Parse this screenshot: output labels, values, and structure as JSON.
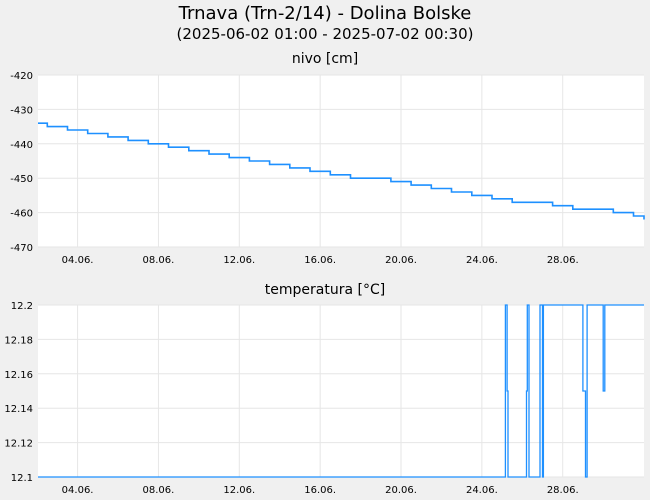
{
  "title": "Trnava (Trn-2/14) - Dolina Bolske",
  "subtitle": "(2025-06-02 01:00 - 2025-07-02 00:30)",
  "chart_data": [
    {
      "type": "line",
      "title": "nivo [cm]",
      "xlabel": "",
      "ylabel": "",
      "ylim": [
        -470,
        -420
      ],
      "yticks": [
        -470,
        -460,
        -450,
        -440,
        -430,
        -420
      ],
      "x_range": [
        "2025-06-02 01:00",
        "2025-07-02 00:30"
      ],
      "xticks": [
        "04.06.",
        "08.06.",
        "12.06.",
        "16.06.",
        "20.06.",
        "24.06.",
        "28.06."
      ],
      "grid": true,
      "color": "#1e90ff",
      "series": [
        {
          "x": [
            "2025-06-02 01:00",
            "2025-06-02 12:00",
            "2025-06-03 12:00",
            "2025-06-04 12:00",
            "2025-06-05 12:00",
            "2025-06-06 12:00",
            "2025-06-07 12:00",
            "2025-06-08 12:00",
            "2025-06-09 12:00",
            "2025-06-10 12:00",
            "2025-06-11 12:00",
            "2025-06-12 12:00",
            "2025-06-13 12:00",
            "2025-06-14 12:00",
            "2025-06-15 12:00",
            "2025-06-16 12:00",
            "2025-06-17 12:00",
            "2025-06-18 12:00",
            "2025-06-19 12:00",
            "2025-06-20 12:00",
            "2025-06-21 12:00",
            "2025-06-22 12:00",
            "2025-06-23 12:00",
            "2025-06-24 12:00",
            "2025-06-25 12:00",
            "2025-06-26 12:00",
            "2025-06-27 12:00",
            "2025-06-28 12:00",
            "2025-06-29 12:00",
            "2025-06-30 12:00",
            "2025-07-01 12:00",
            "2025-07-02 00:30"
          ],
          "values": [
            -434,
            -435,
            -436,
            -437,
            -438,
            -439,
            -440,
            -441,
            -442,
            -443,
            -444,
            -445,
            -446,
            -447,
            -448,
            -449,
            -450,
            -450,
            -451,
            -452,
            -453,
            -454,
            -455,
            -456,
            -457,
            -457,
            -458,
            -459,
            -459,
            -460,
            -461,
            -462
          ]
        }
      ]
    },
    {
      "type": "line",
      "title": "temperatura [°C]",
      "xlabel": "",
      "ylabel": "",
      "ylim": [
        12.1,
        12.2
      ],
      "yticks": [
        12.1,
        12.12,
        12.14,
        12.16,
        12.18,
        12.2
      ],
      "x_range": [
        "2025-06-02 01:00",
        "2025-07-02 00:30"
      ],
      "xticks": [
        "04.06.",
        "08.06.",
        "12.06.",
        "16.06.",
        "20.06.",
        "24.06.",
        "28.06."
      ],
      "grid": true,
      "color": "#1e90ff",
      "series": [
        {
          "x": [
            "2025-06-02 01:00",
            "2025-06-25 03:00",
            "2025-06-25 04:00",
            "2025-06-25 06:00",
            "2025-06-25 07:00",
            "2025-06-26 04:00",
            "2025-06-26 05:00",
            "2025-06-26 06:00",
            "2025-06-26 08:00",
            "2025-06-26 20:00",
            "2025-06-26 21:00",
            "2025-06-27 00:00",
            "2025-06-27 01:00",
            "2025-06-27 20:00",
            "2025-06-28 22:00",
            "2025-06-29 00:00",
            "2025-06-29 03:00",
            "2025-06-29 05:00",
            "2025-06-29 22:00",
            "2025-06-30 00:00",
            "2025-06-30 02:00",
            "2025-07-02 00:30"
          ],
          "values": [
            12.1,
            12.1,
            12.2,
            12.15,
            12.1,
            12.1,
            12.15,
            12.2,
            12.1,
            12.1,
            12.2,
            12.1,
            12.2,
            12.2,
            12.2,
            12.15,
            12.1,
            12.2,
            12.2,
            12.15,
            12.2,
            12.2
          ]
        }
      ]
    }
  ]
}
